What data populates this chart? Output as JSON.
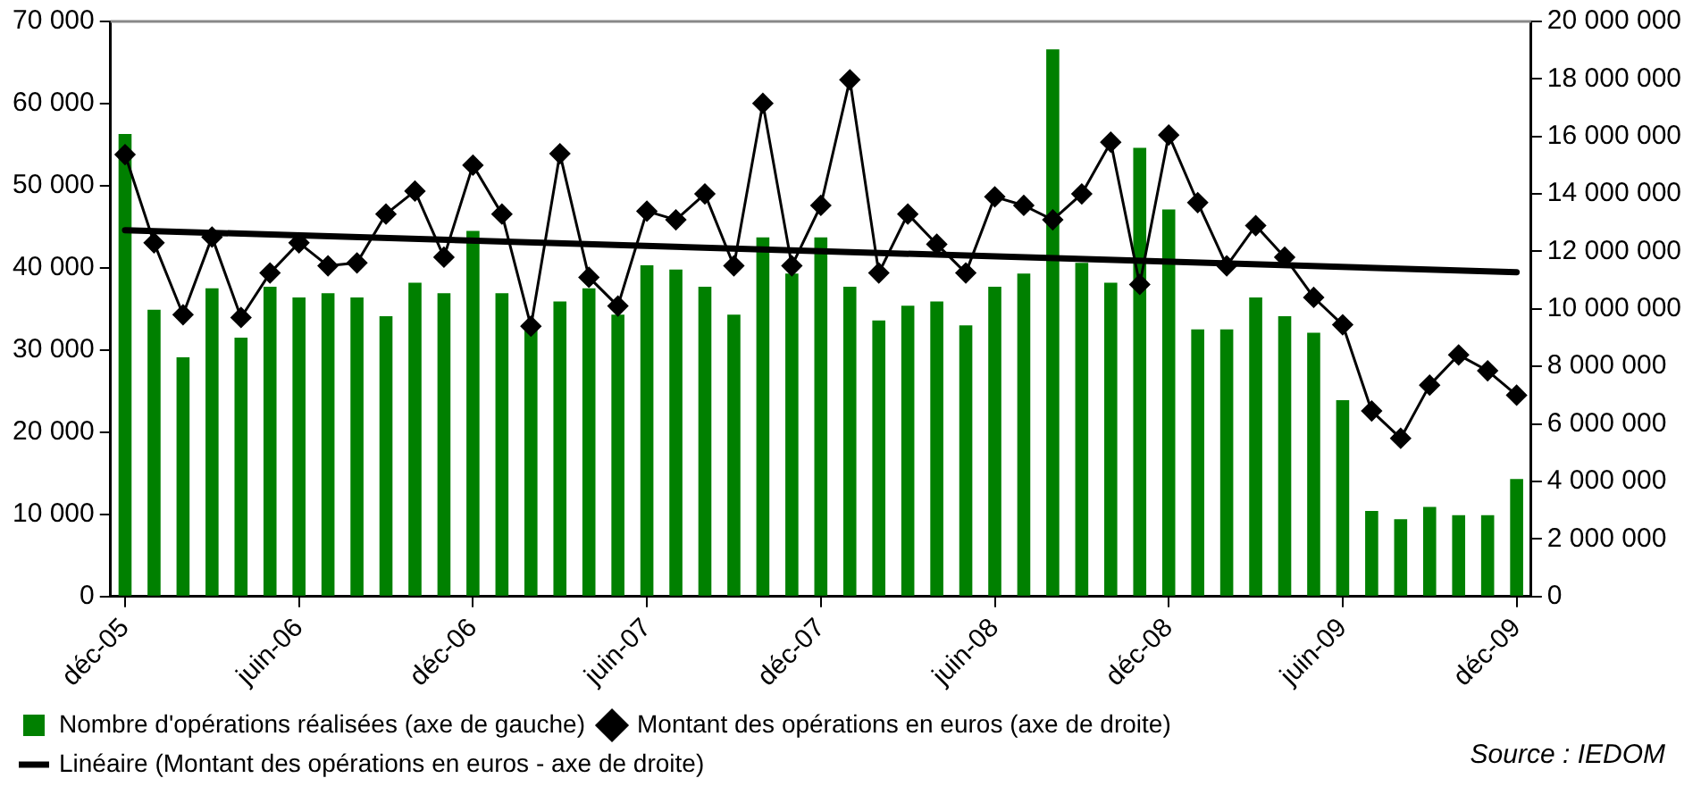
{
  "chart_data": {
    "type": "bar",
    "categories": [
      "déc-05",
      null,
      null,
      null,
      null,
      null,
      "juin-06",
      null,
      null,
      null,
      null,
      null,
      "déc-06",
      null,
      null,
      null,
      null,
      null,
      "juin-07",
      null,
      null,
      null,
      null,
      null,
      "déc-07",
      null,
      null,
      null,
      null,
      null,
      "juin-08",
      null,
      null,
      null,
      null,
      null,
      "déc-08",
      null,
      null,
      null,
      null,
      null,
      "juin-09",
      null,
      null,
      null,
      null,
      null,
      "déc-09"
    ],
    "series": [
      {
        "name": "Nombre d'opérations réalisées (axe de gauche)",
        "color": "#008000",
        "values": [
          56300,
          34900,
          29100,
          37500,
          31500,
          37700,
          36400,
          36900,
          36400,
          34100,
          38200,
          36900,
          44500,
          36900,
          32800,
          35900,
          37500,
          34300,
          40300,
          39800,
          37700,
          34300,
          43700,
          39300,
          43700,
          37700,
          33600,
          35400,
          35900,
          33000,
          37700,
          39300,
          66600,
          40600,
          38200,
          54600,
          47100,
          32500,
          32500,
          36400,
          34100,
          32100,
          23900,
          10400,
          9400,
          10900,
          9900,
          9900,
          14300
        ]
      },
      {
        "name": "Montant des opérations en euros (axe de droite)",
        "type": "line",
        "axis": "y2",
        "color": "#000000",
        "marker": "diamond",
        "values": [
          15370000,
          12300000,
          9800000,
          12500000,
          9700000,
          11250000,
          12300000,
          11500000,
          11600000,
          13300000,
          14100000,
          11800000,
          15000000,
          13300000,
          9400000,
          15400000,
          11100000,
          10100000,
          13400000,
          13100000,
          14000000,
          11500000,
          17150000,
          11500000,
          13600000,
          17970000,
          11250000,
          13300000,
          12250000,
          11250000,
          13900000,
          13600000,
          13100000,
          14000000,
          15800000,
          10850000,
          16050000,
          13700000,
          11500000,
          12900000,
          11800000,
          10400000,
          9450000,
          6450000,
          5500000,
          7350000,
          8400000,
          7850000,
          7000000
        ]
      },
      {
        "name": "Linéaire (Montant des opérations en euros - axe de droite)",
        "type": "line",
        "axis": "y2",
        "color": "#000000",
        "marker": "none",
        "values": [
          12740000,
          null,
          null,
          null,
          null,
          null,
          null,
          null,
          null,
          null,
          null,
          null,
          null,
          null,
          null,
          null,
          null,
          null,
          null,
          null,
          null,
          null,
          null,
          null,
          null,
          null,
          null,
          null,
          null,
          null,
          null,
          null,
          null,
          null,
          null,
          null,
          null,
          null,
          null,
          null,
          null,
          null,
          null,
          null,
          null,
          null,
          null,
          null,
          11280000
        ]
      }
    ],
    "ylim": [
      0,
      70000
    ],
    "yticks": [
      {
        "value": 0,
        "label": "0"
      },
      {
        "value": 10000,
        "label": "10 000"
      },
      {
        "value": 20000,
        "label": "20 000"
      },
      {
        "value": 30000,
        "label": "30 000"
      },
      {
        "value": 40000,
        "label": "40 000"
      },
      {
        "value": 50000,
        "label": "50 000"
      },
      {
        "value": 60000,
        "label": "60 000"
      },
      {
        "value": 70000,
        "label": "70 000"
      }
    ],
    "y2lim": [
      0,
      20000000
    ],
    "y2ticks": [
      {
        "value": 0,
        "label": "0"
      },
      {
        "value": 2000000,
        "label": "2 000 000"
      },
      {
        "value": 4000000,
        "label": "4 000 000"
      },
      {
        "value": 6000000,
        "label": "6 000 000"
      },
      {
        "value": 8000000,
        "label": "8 000 000"
      },
      {
        "value": 10000000,
        "label": "10 000 000"
      },
      {
        "value": 12000000,
        "label": "12 000 000"
      },
      {
        "value": 14000000,
        "label": "14 000 000"
      },
      {
        "value": 16000000,
        "label": "16 000 000"
      },
      {
        "value": 18000000,
        "label": "18 000 000"
      },
      {
        "value": 20000000,
        "label": "20 000 000"
      }
    ],
    "grid": false,
    "legend": "bottom left",
    "annotations": [
      "Source : IEDOM"
    ]
  }
}
